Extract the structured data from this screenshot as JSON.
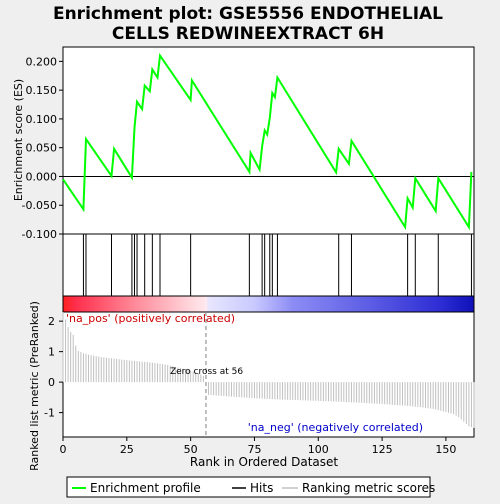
{
  "title_line1": "Enrichment plot: GSE5556 ENDOTHELIAL",
  "title_line2": "CELLS REDWINEEXTRACT 6H",
  "chart_data": {
    "type": "line",
    "title": "Enrichment plot: GSE5556 ENDOTHELIAL CELLS REDWINEEXTRACT 6H",
    "xlabel": "Rank in Ordered Dataset",
    "es_ylabel": "Enrichment score (ES)",
    "metric_ylabel": "Ranked list metric (PreRanked)",
    "xlim": [
      0,
      161
    ],
    "es_ylim": [
      -0.1,
      0.225
    ],
    "metric_ylim": [
      -1.8,
      2.3
    ],
    "x_ticks": [
      0,
      25,
      50,
      75,
      100,
      125,
      150
    ],
    "x_tick_labels": [
      "0",
      "25",
      "50",
      "75",
      "100",
      "125",
      "150"
    ],
    "es_ticks": [
      -0.1,
      -0.05,
      0.0,
      0.05,
      0.1,
      0.15,
      0.2
    ],
    "es_tick_labels": [
      "-0.100",
      "-0.050",
      "0.000",
      "0.050",
      "0.100",
      "0.150",
      "0.200"
    ],
    "metric_ticks": [
      -1,
      0,
      1,
      2
    ],
    "metric_tick_labels": [
      "-1",
      "0",
      "1",
      "2"
    ],
    "hits": [
      8,
      9,
      19,
      27,
      28,
      29,
      32,
      35,
      38,
      50,
      73,
      78,
      79,
      81,
      82,
      84,
      108,
      113,
      135,
      138,
      147,
      160
    ],
    "es_curve": [
      [
        0,
        -0.005
      ],
      [
        8,
        -0.057
      ],
      [
        9,
        0.065
      ],
      [
        19,
        0.001
      ],
      [
        20,
        0.048
      ],
      [
        27,
        -0.002
      ],
      [
        28,
        0.085
      ],
      [
        29,
        0.13
      ],
      [
        31,
        0.117
      ],
      [
        32,
        0.158
      ],
      [
        34,
        0.148
      ],
      [
        35,
        0.186
      ],
      [
        37,
        0.172
      ],
      [
        38,
        0.21
      ],
      [
        50,
        0.133
      ],
      [
        50.5,
        0.167
      ],
      [
        73,
        0.008
      ],
      [
        73.5,
        0.041
      ],
      [
        77,
        0.012
      ],
      [
        78,
        0.052
      ],
      [
        79,
        0.08
      ],
      [
        80,
        0.073
      ],
      [
        81,
        0.102
      ],
      [
        82,
        0.145
      ],
      [
        83,
        0.138
      ],
      [
        84,
        0.172
      ],
      [
        107,
        0.007
      ],
      [
        108,
        0.048
      ],
      [
        112,
        0.022
      ],
      [
        113,
        0.062
      ],
      [
        134,
        -0.088
      ],
      [
        135,
        -0.038
      ],
      [
        137,
        -0.054
      ],
      [
        138,
        -0.003
      ],
      [
        146,
        -0.06
      ],
      [
        147,
        -0.003
      ],
      [
        159,
        -0.088
      ],
      [
        160,
        0.008
      ]
    ],
    "metric_profile": [
      [
        0,
        2.3
      ],
      [
        1,
        2.05
      ],
      [
        2,
        1.8
      ],
      [
        3,
        1.65
      ],
      [
        4,
        1.55
      ],
      [
        5,
        1.2
      ],
      [
        6,
        1.02
      ],
      [
        8,
        0.95
      ],
      [
        10,
        0.9
      ],
      [
        15,
        0.82
      ],
      [
        20,
        0.77
      ],
      [
        25,
        0.72
      ],
      [
        30,
        0.68
      ],
      [
        35,
        0.64
      ],
      [
        40,
        0.58
      ],
      [
        45,
        0.48
      ],
      [
        50,
        0.38
      ],
      [
        53,
        0.3
      ],
      [
        55,
        0.2
      ],
      [
        56,
        0.0
      ],
      [
        57,
        -0.42
      ],
      [
        65,
        -0.47
      ],
      [
        75,
        -0.53
      ],
      [
        85,
        -0.57
      ],
      [
        95,
        -0.6
      ],
      [
        105,
        -0.63
      ],
      [
        115,
        -0.67
      ],
      [
        125,
        -0.72
      ],
      [
        135,
        -0.78
      ],
      [
        140,
        -0.82
      ],
      [
        145,
        -0.88
      ],
      [
        150,
        -0.98
      ],
      [
        153,
        -1.05
      ],
      [
        155,
        -1.15
      ],
      [
        157,
        -1.3
      ],
      [
        159,
        -1.45
      ],
      [
        161,
        -1.5
      ]
    ],
    "zero_cross_rank": 56,
    "zero_cross_label": "Zero cross at 56",
    "pos_label": "'na_pos' (positively correlated)",
    "neg_label": "'na_neg' (negatively correlated)",
    "legend": {
      "placement": "bottom",
      "entries": [
        {
          "name": "Enrichment profile",
          "color": "#00ff00"
        },
        {
          "name": "Hits",
          "color": "#000000"
        },
        {
          "name": "Ranking metric scores",
          "color": "#c0c0c0"
        }
      ]
    },
    "colors": {
      "es_line": "#00ff00",
      "hits": "#000000",
      "metric_bars": "#c0c0c0",
      "pos_text": "#cc0000",
      "neg_text": "#0000cc",
      "zero_line": "#808080"
    },
    "heat_stops": [
      {
        "rank": 0,
        "color": "#ff1f1f"
      },
      {
        "rank": 5,
        "color": "#ff2f4c"
      },
      {
        "rank": 28,
        "color": "#ff8a99"
      },
      {
        "rank": 50,
        "color": "#ffd6dc"
      },
      {
        "rank": 56,
        "color": "#ffe8ee"
      },
      {
        "rank": 57,
        "color": "#e6e6ff"
      },
      {
        "rank": 75,
        "color": "#c9c9ff"
      },
      {
        "rank": 90,
        "color": "#8c8cf4"
      },
      {
        "rank": 118,
        "color": "#6060e6"
      },
      {
        "rank": 148,
        "color": "#2d2dd4"
      },
      {
        "rank": 161,
        "color": "#1010b8"
      }
    ]
  }
}
